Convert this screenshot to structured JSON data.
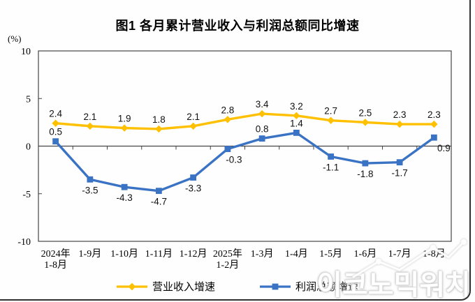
{
  "title": "图1  各月累计营业收入与利润总额同比增速",
  "chart_data": {
    "type": "line",
    "title": "图1  各月累计营业收入与利润总额同比增速",
    "xlabel": "",
    "ylabel": "(%)",
    "ylim": [
      -10,
      10
    ],
    "yticks": [
      10,
      5,
      0,
      -5,
      -10
    ],
    "grid": false,
    "legend_position": "bottom",
    "categories": [
      [
        "2024年",
        "1-8月"
      ],
      [
        "1-9月"
      ],
      [
        "1-10月"
      ],
      [
        "1-11月"
      ],
      [
        "1-12月"
      ],
      [
        "2025年",
        "1-2月"
      ],
      [
        "1-3月"
      ],
      [
        "1-4月"
      ],
      [
        "1-5月"
      ],
      [
        "1-6月"
      ],
      [
        "1-7月"
      ],
      [
        "1-8月"
      ]
    ],
    "series": [
      {
        "name": "营业收入增速",
        "marker": "diamond",
        "color": "#FFC000",
        "values": [
          2.4,
          2.1,
          1.9,
          1.8,
          2.1,
          2.8,
          3.4,
          3.2,
          2.7,
          2.5,
          2.3,
          2.3
        ]
      },
      {
        "name": "利润总额增速",
        "marker": "square",
        "color": "#3A73C4",
        "values": [
          0.5,
          -3.5,
          -4.3,
          -4.7,
          -3.3,
          -0.3,
          0.8,
          1.4,
          -1.1,
          -1.8,
          -1.7,
          0.9
        ]
      }
    ],
    "axis_color": "#454545"
  },
  "watermark": {
    "text": "이코노믹워치"
  }
}
